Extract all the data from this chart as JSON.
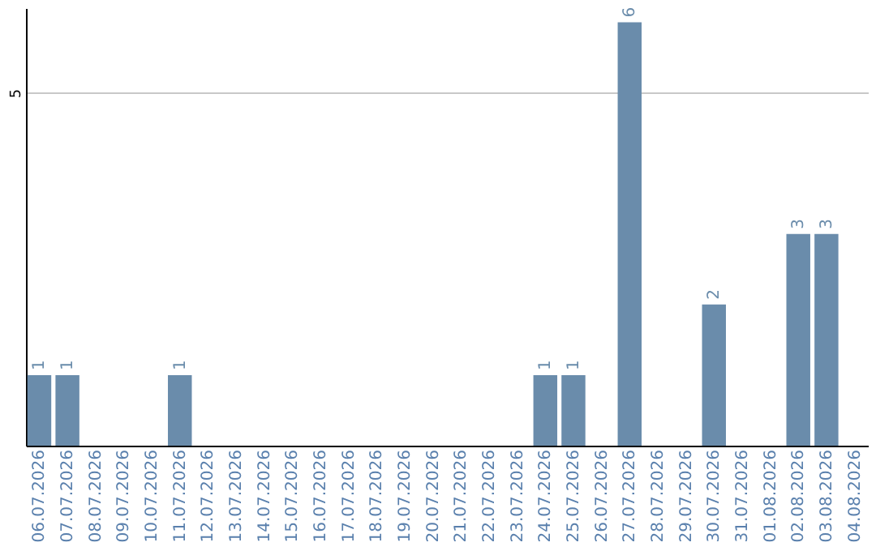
{
  "chart_data": {
    "type": "bar",
    "categories": [
      "06.07.2026",
      "07.07.2026",
      "08.07.2026",
      "09.07.2026",
      "10.07.2026",
      "11.07.2026",
      "12.07.2026",
      "13.07.2026",
      "14.07.2026",
      "15.07.2026",
      "16.07.2026",
      "17.07.2026",
      "18.07.2026",
      "19.07.2026",
      "20.07.2026",
      "21.07.2026",
      "22.07.2026",
      "23.07.2026",
      "24.07.2026",
      "25.07.2026",
      "26.07.2026",
      "27.07.2026",
      "28.07.2026",
      "29.07.2026",
      "30.07.2026",
      "31.07.2026",
      "01.08.2026",
      "02.08.2026",
      "03.08.2026",
      "04.08.2026"
    ],
    "values": [
      1,
      1,
      0,
      0,
      0,
      1,
      0,
      0,
      0,
      0,
      0,
      0,
      0,
      0,
      0,
      0,
      0,
      0,
      1,
      1,
      0,
      6,
      0,
      0,
      2,
      0,
      0,
      3,
      3,
      0
    ],
    "value_labels": [
      "1",
      "1",
      null,
      null,
      null,
      "1",
      null,
      null,
      null,
      null,
      null,
      null,
      null,
      null,
      null,
      null,
      null,
      null,
      "1",
      "1",
      null,
      "6",
      null,
      null,
      "2",
      null,
      null,
      "3",
      "3",
      null
    ],
    "color": "#6a8cab",
    "ylim": [
      0,
      6.2
    ],
    "yticks": [
      5
    ],
    "grid": "y"
  }
}
